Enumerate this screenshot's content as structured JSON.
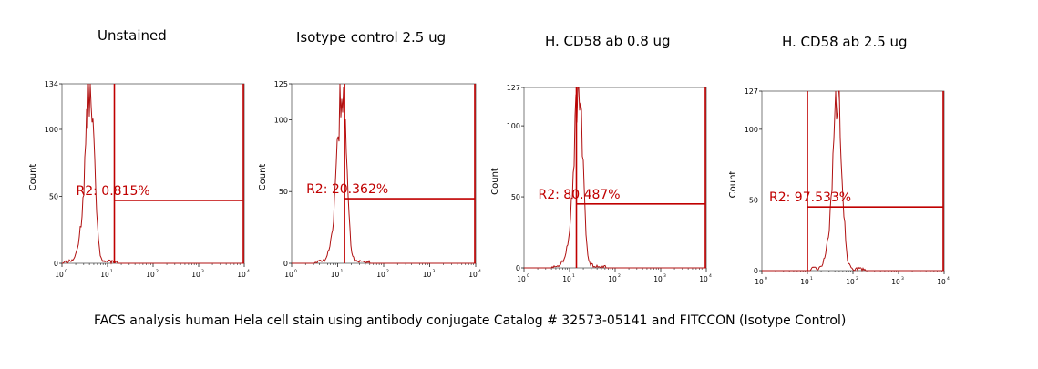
{
  "caption": "FACS analysis human Hela cell stain using antibody conjugate Catalog # 32573-05141 and FITCCON (Isotype Control)",
  "colors": {
    "trace": "#b01010",
    "gate": "#c00000",
    "axis": "#000000"
  },
  "chart_data": [
    {
      "type": "histogram",
      "title": "Unstained",
      "ylabel": "Count",
      "ylim": [
        0,
        134
      ],
      "yticks": [
        "0",
        "50",
        "100",
        "134"
      ],
      "xscale": "log",
      "xlim": [
        1,
        10000
      ],
      "xticks": [
        "10",
        "10",
        "10",
        "10",
        "10"
      ],
      "peak": {
        "center_decade": 0.62,
        "height": 134
      },
      "gate": {
        "name": "R2",
        "label": "R2: 0.815%",
        "percent": 0.815,
        "start_decade": 1.15,
        "end_decade": 3.98,
        "level": 47
      }
    },
    {
      "type": "histogram",
      "title": "Isotype control 2.5 ug",
      "ylabel": "Count",
      "ylim": [
        0,
        125
      ],
      "yticks": [
        "0",
        "50",
        "100",
        "125"
      ],
      "xscale": "log",
      "xlim": [
        1,
        10000
      ],
      "xticks": [
        "10",
        "10",
        "10",
        "10",
        "10"
      ],
      "peak": {
        "center_decade": 1.1,
        "height": 125
      },
      "gate": {
        "name": "R2",
        "label": "R2: 20.362%",
        "percent": 20.362,
        "start_decade": 1.15,
        "end_decade": 3.98,
        "level": 45
      }
    },
    {
      "type": "histogram",
      "title": "H. CD58 ab 0.8 ug",
      "ylabel": "Count",
      "ylim": [
        0,
        127
      ],
      "yticks": [
        "0",
        "50",
        "100",
        "127"
      ],
      "xscale": "log",
      "xlim": [
        1,
        10000
      ],
      "xticks": [
        "10",
        "10",
        "10",
        "10",
        "10"
      ],
      "peak": {
        "center_decade": 1.2,
        "height": 127
      },
      "gate": {
        "name": "R2",
        "label": "R2: 80.487%",
        "percent": 80.487,
        "start_decade": 1.15,
        "end_decade": 3.98,
        "level": 45
      }
    },
    {
      "type": "histogram",
      "title": "H. CD58 ab 2.5 ug",
      "ylabel": "Count",
      "ylim": [
        0,
        127
      ],
      "yticks": [
        "0",
        "50",
        "100",
        "127"
      ],
      "xscale": "log",
      "xlim": [
        1,
        10000
      ],
      "xticks": [
        "10",
        "10",
        "10",
        "10",
        "10"
      ],
      "peak": {
        "center_decade": 1.67,
        "height": 127
      },
      "gate": {
        "name": "R2",
        "label": "R2: 97.533%",
        "percent": 97.533,
        "start_decade": 1.0,
        "end_decade": 3.98,
        "level": 45
      }
    }
  ]
}
